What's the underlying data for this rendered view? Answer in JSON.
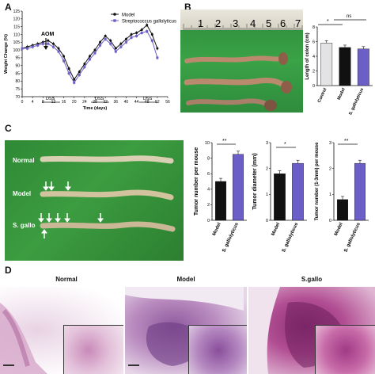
{
  "panels": {
    "a": "A",
    "b": "B",
    "c": "C",
    "d": "D"
  },
  "panelA": {
    "annotation_aom": "AOM",
    "dss_labels": [
      "DSS",
      "DSS",
      "DSS"
    ],
    "legend": [
      "Model",
      "Streptococcus gallolyticus"
    ]
  },
  "panelB": {
    "ruler_numbers": [
      "1",
      "2",
      "3",
      "4",
      "5",
      "6",
      "7"
    ],
    "sig_left": "*",
    "sig_right": "ns"
  },
  "panelC": {
    "rows": [
      "Normal",
      "Model",
      "S. gallo"
    ],
    "sig": [
      "**",
      "*",
      "**"
    ]
  },
  "panelD": {
    "titles": [
      "Normal",
      "Model",
      "S.gallo"
    ]
  },
  "colors": {
    "model": "#111111",
    "gallo": "#6b5fc7",
    "control": "#e3e3e6",
    "gel_green": "#3f8d3a"
  },
  "chart_data": [
    {
      "type": "line",
      "title": "",
      "xlabel": "Time (days)",
      "ylabel": "Weight Change (%)",
      "x": [
        0,
        2,
        4,
        6,
        8,
        10,
        12,
        14,
        16,
        18,
        20,
        22,
        24,
        26,
        28,
        30,
        32,
        34,
        36,
        38,
        40,
        42,
        44,
        46,
        48,
        50,
        52
      ],
      "xticks": [
        "0",
        "4",
        "8",
        "12",
        "16",
        "20",
        "24",
        "28",
        "32",
        "36",
        "40",
        "44",
        "48",
        "52",
        "56"
      ],
      "yticks": [
        "70",
        "75",
        "80",
        "85",
        "90",
        "95",
        "100",
        "105",
        "110",
        "115",
        "120",
        "125"
      ],
      "xlim": [
        0,
        56
      ],
      "ylim": [
        70,
        125
      ],
      "series": [
        {
          "name": "Model",
          "values": [
            101,
            102,
            103,
            104,
            105,
            106,
            104,
            101,
            96,
            88,
            81,
            86,
            91,
            96,
            100,
            105,
            109,
            106,
            101,
            104,
            107,
            110,
            111,
            113,
            116,
            110,
            101
          ]
        },
        {
          "name": "Streptococcus gallolyticus",
          "values": [
            101,
            101,
            102,
            103,
            104,
            104,
            102,
            99,
            93,
            85,
            79,
            84,
            89,
            94,
            98,
            103,
            107,
            104,
            99,
            102,
            105,
            108,
            109,
            111,
            112,
            106,
            95
          ]
        }
      ]
    },
    {
      "type": "bar",
      "title": "",
      "ylabel": "Length of colon (cm)",
      "categories": [
        "Control",
        "Model",
        "S. gallolyticus"
      ],
      "yticks": [
        "0",
        "2",
        "4",
        "6",
        "8"
      ],
      "values": [
        5.8,
        5.2,
        5.0
      ],
      "ylim": [
        0,
        8
      ]
    },
    {
      "type": "bar",
      "title": "",
      "ylabel": "Tumor number per mouse",
      "categories": [
        "Model",
        "S. gallolyticus"
      ],
      "yticks": [
        "0",
        "2",
        "4",
        "6",
        "8",
        "10"
      ],
      "values": [
        5.0,
        8.5
      ],
      "ylim": [
        0,
        10
      ]
    },
    {
      "type": "bar",
      "title": "",
      "ylabel": "Tumor diameter (mm)",
      "categories": [
        "Model",
        "S. gallolyticus"
      ],
      "yticks": [
        "0",
        "1",
        "2",
        "3"
      ],
      "values": [
        1.8,
        2.2
      ],
      "ylim": [
        0,
        3
      ]
    },
    {
      "type": "bar",
      "title": "",
      "ylabel": "Tumor number (1-3mm) per mouse",
      "categories": [
        "Model",
        "S. gallolyticus"
      ],
      "yticks": [
        "0",
        "1",
        "2",
        "3"
      ],
      "values": [
        0.8,
        2.2
      ],
      "ylim": [
        0,
        3
      ]
    }
  ]
}
